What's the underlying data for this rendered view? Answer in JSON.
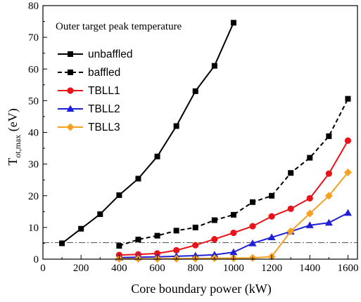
{
  "chart_data": {
    "type": "line",
    "annotation": "Outer target peak temperature",
    "xlabel": "Core boundary power (kW)",
    "ylabel": {
      "main": "T",
      "sub": "ot,max",
      "unit": " (eV)"
    },
    "xlim": [
      0,
      1650
    ],
    "ylim": [
      0,
      80
    ],
    "xticks": [
      0,
      200,
      400,
      600,
      800,
      1000,
      1200,
      1400,
      1600
    ],
    "yticks": [
      0,
      10,
      20,
      30,
      40,
      50,
      60,
      70,
      80
    ],
    "grid": false,
    "legend_position": "top-left",
    "reference_line": {
      "y": 5.2,
      "style": "dash-dot",
      "color": "#555555"
    },
    "series": [
      {
        "name": "unbaffled",
        "color": "#000000",
        "dash": "solid",
        "marker": "square",
        "x": [
          100,
          200,
          300,
          400,
          500,
          600,
          700,
          800,
          900,
          1000
        ],
        "y": [
          5,
          9.6,
          14.2,
          20.2,
          25.4,
          32.4,
          42,
          53,
          61,
          74.6
        ]
      },
      {
        "name": "baffled",
        "color": "#000000",
        "dash": "dashed",
        "marker": "square",
        "x": [
          400,
          500,
          600,
          700,
          800,
          900,
          1000,
          1100,
          1200,
          1300,
          1400,
          1500,
          1600
        ],
        "y": [
          4.2,
          6.2,
          7.4,
          9,
          10,
          12.3,
          14,
          18,
          20,
          27.2,
          32,
          38.8,
          50.6
        ]
      },
      {
        "name": "TBLL1",
        "color": "#e8141a",
        "dash": "solid",
        "marker": "circle",
        "x": [
          400,
          500,
          600,
          700,
          800,
          900,
          1000,
          1100,
          1200,
          1300,
          1400,
          1500,
          1600
        ],
        "y": [
          1.3,
          1.5,
          1.8,
          2.8,
          4.4,
          6.3,
          8.3,
          10.4,
          13.5,
          15.9,
          19.2,
          27,
          37.4
        ]
      },
      {
        "name": "TBLL2",
        "color": "#1f1fd8",
        "dash": "solid",
        "marker": "triangle",
        "x": [
          400,
          500,
          600,
          700,
          800,
          900,
          1000,
          1100,
          1200,
          1300,
          1400,
          1500,
          1600
        ],
        "y": [
          0.5,
          0.6,
          0.7,
          0.9,
          1.1,
          1.4,
          2.2,
          5,
          6.9,
          8.7,
          10.7,
          11.5,
          14.6
        ]
      },
      {
        "name": "TBLL3",
        "color": "#f5a020",
        "dash": "solid",
        "marker": "diamond",
        "x": [
          400,
          500,
          600,
          700,
          800,
          900,
          1000,
          1100,
          1200,
          1300,
          1400,
          1500,
          1600
        ],
        "y": [
          0.1,
          0.1,
          0.1,
          0.15,
          0.2,
          0.3,
          0.3,
          0.4,
          0.8,
          8.8,
          14.4,
          20,
          27.4
        ]
      }
    ]
  }
}
